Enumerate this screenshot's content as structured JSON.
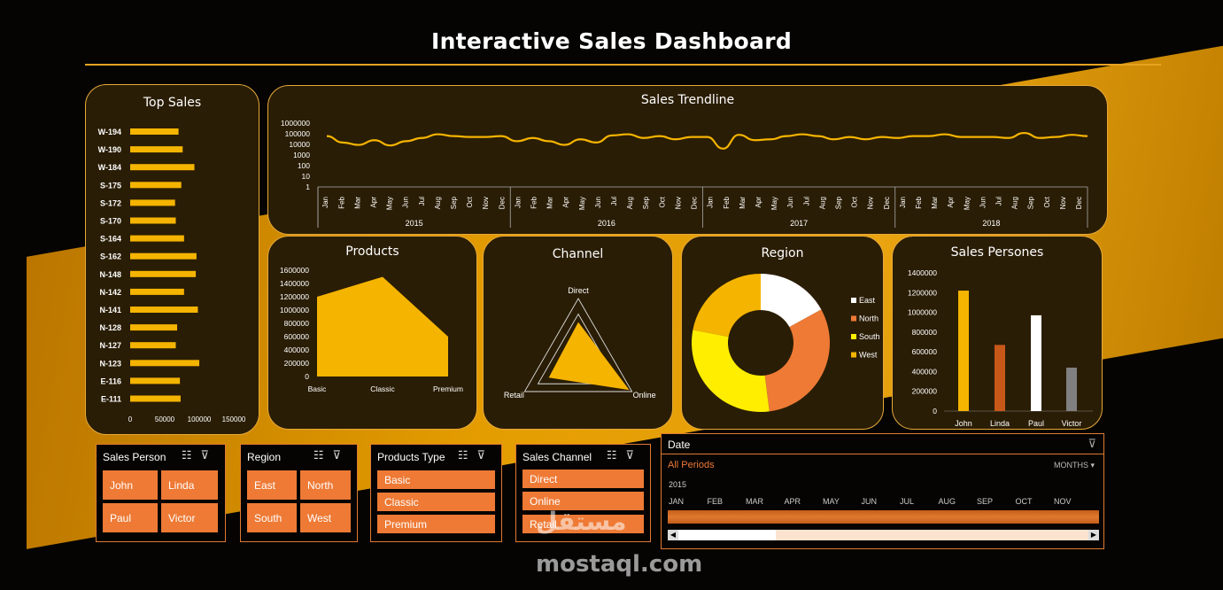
{
  "header": {
    "title": "Interactive Sales Dashboard"
  },
  "colors": {
    "accent": "#f5b400",
    "orange": "#ee7a35",
    "panel": "#2a1d05",
    "border": "#e6a93a"
  },
  "chart_data": [
    {
      "type": "bar",
      "title": "Top Sales",
      "orientation": "horizontal",
      "categories": [
        "W-194",
        "W-190",
        "W-184",
        "S-175",
        "S-172",
        "S-170",
        "S-164",
        "S-162",
        "N-148",
        "N-142",
        "N-141",
        "N-128",
        "N-127",
        "N-123",
        "E-116",
        "E-111"
      ],
      "values": [
        70000,
        76000,
        93000,
        74000,
        65000,
        66000,
        78000,
        96000,
        95000,
        78000,
        98000,
        68000,
        66000,
        100000,
        72000,
        73000
      ],
      "xlim": [
        0,
        150000
      ],
      "xticks": [
        "0",
        "50000",
        "100000",
        "150000"
      ]
    },
    {
      "type": "line",
      "title": "Sales Trendline",
      "yscale": "log",
      "yticks": [
        "1",
        "10",
        "100",
        "1000",
        "10000",
        "100000",
        "1000000"
      ],
      "months": [
        "Jan",
        "Feb",
        "Mar",
        "Apr",
        "May",
        "Jun",
        "Jul",
        "Aug",
        "Sep",
        "Oct",
        "Nov",
        "Dec"
      ],
      "years": [
        "2015",
        "2016",
        "2017",
        "2018"
      ],
      "values": [
        60000,
        15000,
        9000,
        25000,
        8000,
        20000,
        40000,
        90000,
        60000,
        50000,
        50000,
        60000,
        20000,
        40000,
        20000,
        9000,
        30000,
        15000,
        70000,
        90000,
        40000,
        60000,
        30000,
        50000,
        50000,
        4000,
        80000,
        25000,
        30000,
        60000,
        90000,
        60000,
        30000,
        50000,
        30000,
        50000,
        40000,
        60000,
        60000,
        90000,
        50000,
        50000,
        50000,
        40000,
        120000,
        40000,
        50000,
        80000,
        60000
      ]
    },
    {
      "type": "area",
      "title": "Products",
      "categories": [
        "Basic",
        "Classic",
        "Premium"
      ],
      "values": [
        1200000,
        1500000,
        600000
      ],
      "ylim": [
        0,
        1600000
      ],
      "yticks": [
        "0",
        "200000",
        "400000",
        "600000",
        "800000",
        "1000000",
        "1200000",
        "1400000",
        "1600000"
      ]
    },
    {
      "type": "radar",
      "title": "Channel",
      "categories": [
        "Direct",
        "Online",
        "Retail"
      ],
      "values": [
        0.62,
        0.95,
        0.55
      ]
    },
    {
      "type": "pie",
      "title": "Region",
      "donut": true,
      "categories": [
        "East",
        "North",
        "South",
        "West"
      ],
      "values": [
        0.17,
        0.31,
        0.3,
        0.22
      ],
      "colors": [
        "#ffffff",
        "#ee7a35",
        "#ffee00",
        "#f5b400"
      ],
      "legend": "right"
    },
    {
      "type": "bar",
      "title": "Sales Persones",
      "categories": [
        "John",
        "Linda",
        "Paul",
        "Victor"
      ],
      "values": [
        1220000,
        670000,
        970000,
        440000
      ],
      "colors": [
        "#f5b400",
        "#c8581a",
        "#ffffff",
        "#808080"
      ],
      "ylim": [
        0,
        1400000
      ],
      "yticks": [
        "0",
        "200000",
        "400000",
        "600000",
        "800000",
        "1000000",
        "1200000",
        "1400000"
      ]
    }
  ],
  "slicers": {
    "sales_person": {
      "title": "Sales Person",
      "items": [
        "John",
        "Linda",
        "Paul",
        "Victor"
      ]
    },
    "region": {
      "title": "Region",
      "items": [
        "East",
        "North",
        "South",
        "West"
      ]
    },
    "products_type": {
      "title": "Products Type",
      "items": [
        "Basic",
        "Classic",
        "Premium"
      ]
    },
    "sales_channel": {
      "title": "Sales Channel",
      "items": [
        "Direct",
        "Online",
        "Retail"
      ]
    }
  },
  "timeline": {
    "title": "Date",
    "periods_label": "All Periods",
    "level": "MONTHS",
    "year": "2015",
    "months": [
      "JAN",
      "FEB",
      "MAR",
      "APR",
      "MAY",
      "JUN",
      "JUL",
      "AUG",
      "SEP",
      "OCT",
      "NOV"
    ]
  },
  "watermark": {
    "arabic": "مستقل",
    "latin": "mostaql.com"
  }
}
